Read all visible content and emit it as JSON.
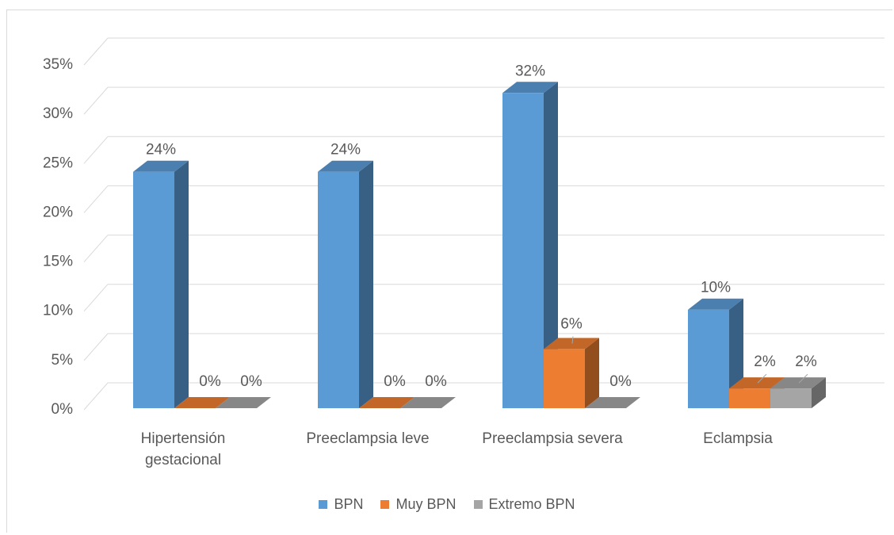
{
  "chart_data": {
    "type": "bar",
    "subtype": "3d-clustered-column",
    "categories": [
      [
        "Hipertensión",
        "gestacional"
      ],
      [
        "Preeclampsia leve"
      ],
      [
        "Preeclampsia severa"
      ],
      [
        "Eclampsia"
      ]
    ],
    "series": [
      {
        "name": "BPN",
        "values": [
          24,
          24,
          32,
          10
        ],
        "labels": [
          "24%",
          "24%",
          "32%",
          "10%"
        ],
        "color": "#5b9bd5"
      },
      {
        "name": "Muy BPN",
        "values": [
          0,
          0,
          6,
          2
        ],
        "labels": [
          "0%",
          "0%",
          "6%",
          "2%"
        ],
        "color": "#ed7d31"
      },
      {
        "name": "Extremo BPN",
        "values": [
          0,
          0,
          0,
          2
        ],
        "labels": [
          "0%",
          "0%",
          "0%",
          "2%"
        ],
        "color": "#a5a5a5"
      }
    ],
    "yticks": [
      "0%",
      "5%",
      "10%",
      "15%",
      "20%",
      "25%",
      "30%",
      "35%"
    ],
    "ylim": [
      0,
      35
    ],
    "grid": true,
    "legend_position": "bottom",
    "title": "",
    "xlabel": "",
    "ylabel": ""
  }
}
